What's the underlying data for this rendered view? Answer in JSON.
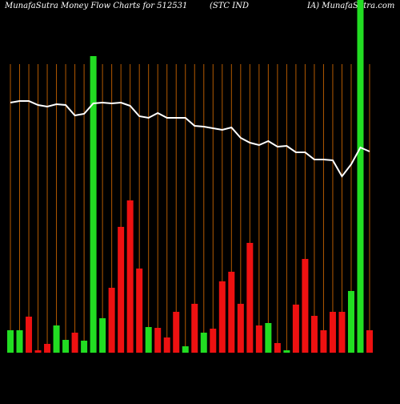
{
  "chart_data": {
    "type": "bar",
    "title": "MunafaSutra  Money Flow  Charts for 512531",
    "subtitle": "(STC IND",
    "source": "IA) MunafaSutra.com",
    "values": [
      28,
      28,
      45,
      3,
      11,
      34,
      16,
      25,
      15,
      370,
      43,
      81,
      157,
      190,
      105,
      32,
      31,
      19,
      51,
      8,
      61,
      25,
      30,
      89,
      101,
      61,
      137,
      34,
      37,
      12,
      3,
      60,
      117,
      46,
      28,
      51,
      51,
      77,
      460,
      28
    ],
    "bar_colors": [
      "#22dd22",
      "#22dd22",
      "#ee1111",
      "#ee1111",
      "#ee1111",
      "#22dd22",
      "#22dd22",
      "#ee1111",
      "#22dd22",
      "#22dd22",
      "#22dd22",
      "#ee1111",
      "#ee1111",
      "#ee1111",
      "#ee1111",
      "#22dd22",
      "#ee1111",
      "#ee1111",
      "#ee1111",
      "#22dd22",
      "#ee1111",
      "#22dd22",
      "#ee1111",
      "#ee1111",
      "#ee1111",
      "#ee1111",
      "#ee1111",
      "#ee1111",
      "#22dd22",
      "#ee1111",
      "#22dd22",
      "#ee1111",
      "#ee1111",
      "#ee1111",
      "#ee1111",
      "#ee1111",
      "#ee1111",
      "#22dd22",
      "#22dd22",
      "#ee1111"
    ],
    "line": {
      "color": "#ffffff",
      "values": [
        372,
        374,
        374,
        369,
        367,
        370,
        369,
        356,
        358,
        371,
        372,
        371,
        372,
        368,
        355,
        353,
        359,
        353,
        353,
        353,
        343,
        342,
        340,
        338,
        341,
        328,
        322,
        319,
        324,
        317,
        318,
        310,
        310,
        301,
        301,
        300,
        280,
        295,
        316,
        311
      ]
    },
    "grid_color": "#b35900"
  }
}
